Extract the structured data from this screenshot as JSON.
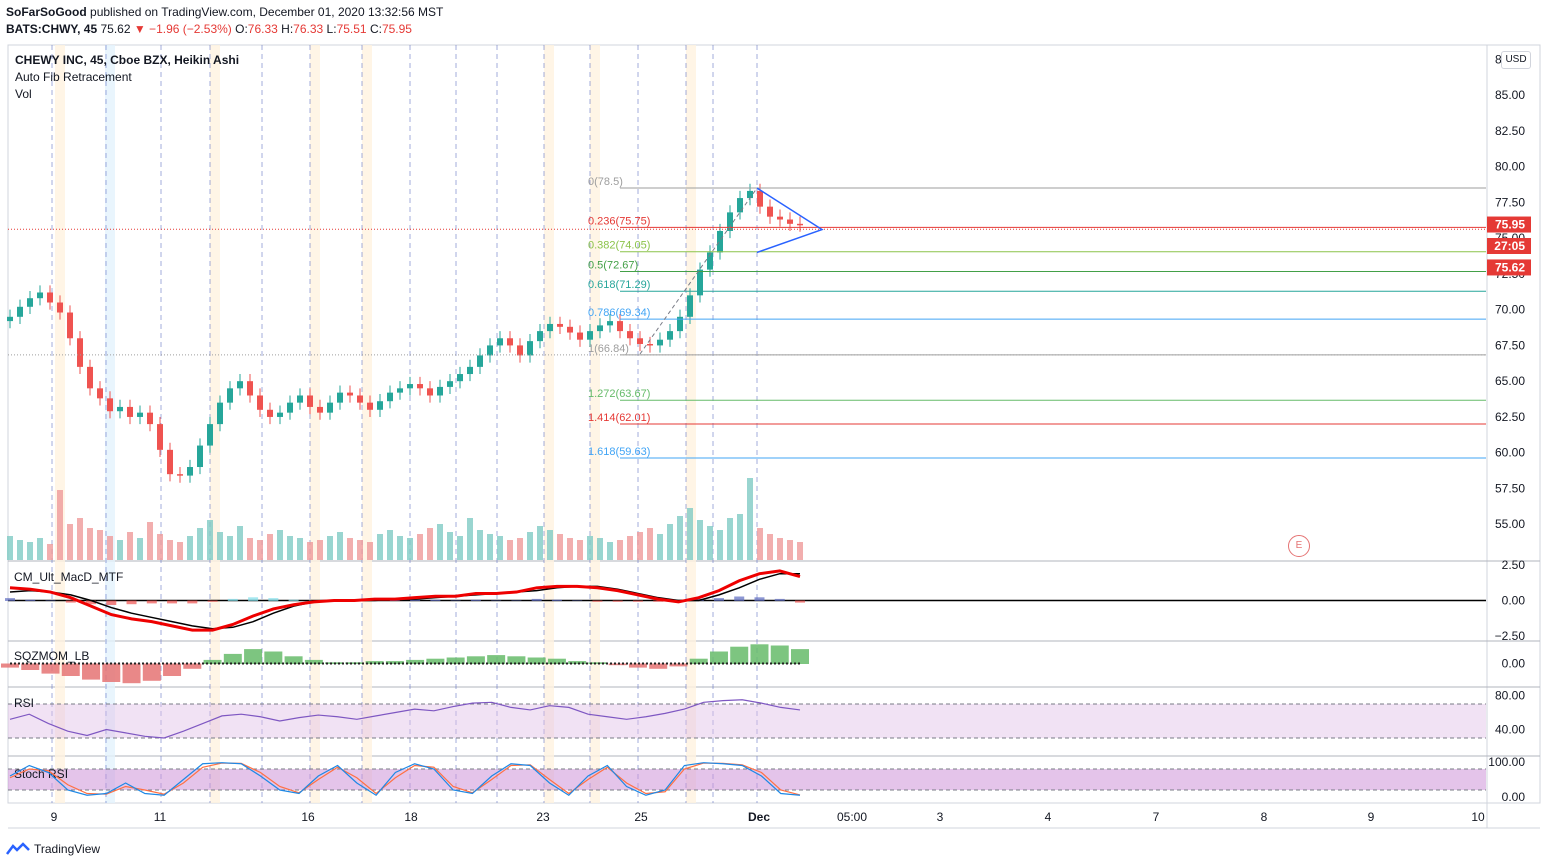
{
  "header": {
    "author": "SoFarSoGood",
    "published_text": "published on TradingView.com, December 01, 2020 13:32:56 MST",
    "symbol": "BATS:CHWY, 45",
    "last": "75.62",
    "change": "▼ −1.96 (−2.53%)",
    "o_label": "O:",
    "o": "76.33",
    "h_label": "H:",
    "h": "76.33",
    "l_label": "L:",
    "l": "75.51",
    "c_label": "C:",
    "c": "75.95"
  },
  "legend": {
    "title": "CHEWY INC, 45, Cboe BZX, Heikin Ashi",
    "fib": "Auto Fib Retracement",
    "vol": "Vol"
  },
  "currency": "USD",
  "earnings_badge": "E",
  "footer": {
    "brand": "TradingView"
  },
  "colors": {
    "up": "#26a69a",
    "down": "#ef5350",
    "grid": "#f0f3fa",
    "axis": "#131722"
  },
  "chart_data": [
    {
      "type": "candlestick",
      "style": "Heikin Ashi",
      "title": "CHEWY INC, 45, Cboe BZX, Heikin Ashi",
      "currency": "USD",
      "ylim": [
        52.5,
        88.5
      ],
      "y_ticks": [
        "55.00",
        "57.50",
        "60.00",
        "62.50",
        "65.00",
        "67.50",
        "70.00",
        "72.50",
        "75.00",
        "77.50",
        "80.00",
        "82.50",
        "85.00",
        "87.50"
      ],
      "x_ticks": [
        "9",
        "11",
        "16",
        "18",
        "23",
        "25",
        "Dec",
        "05:00",
        "3",
        "4",
        "7",
        "8",
        "9",
        "10"
      ],
      "last_price_labels": [
        "75.95",
        "27:05",
        "75.62"
      ],
      "close_path": [
        69.5,
        70.2,
        70.8,
        71.2,
        70.5,
        69.8,
        68.0,
        66.0,
        64.5,
        63.8,
        62.9,
        63.2,
        62.5,
        62.8,
        62.0,
        60.2,
        58.5,
        58.4,
        59.0,
        60.5,
        62.0,
        63.5,
        64.5,
        65.0,
        64.0,
        63.0,
        62.5,
        62.8,
        63.5,
        64.0,
        63.2,
        62.8,
        63.5,
        64.2,
        64.0,
        63.5,
        63.0,
        63.6,
        64.2,
        64.5,
        64.8,
        64.5,
        64.0,
        64.6,
        65.0,
        65.5,
        66.0,
        66.8,
        67.5,
        68.0,
        67.5,
        66.8,
        67.8,
        68.5,
        69.0,
        68.8,
        68.4,
        67.9,
        68.5,
        68.9,
        69.2,
        68.5,
        68.0,
        67.6,
        67.5,
        67.9,
        68.5,
        69.5,
        71.0,
        72.8,
        74.0,
        75.5,
        76.8,
        77.8,
        78.3,
        77.2,
        76.5,
        76.3,
        76.0,
        75.95
      ],
      "volume_path": [
        1.2,
        1.0,
        0.9,
        1.1,
        0.8,
        3.5,
        1.8,
        2.1,
        1.6,
        1.5,
        1.2,
        1.0,
        1.4,
        1.1,
        1.9,
        1.3,
        1.0,
        0.9,
        1.2,
        1.6,
        2.0,
        1.4,
        1.2,
        1.7,
        1.1,
        1.0,
        1.3,
        1.5,
        1.2,
        1.1,
        0.9,
        1.0,
        1.2,
        1.4,
        1.1,
        1.0,
        0.9,
        1.3,
        1.5,
        1.2,
        1.1,
        1.3,
        1.6,
        1.8,
        1.4,
        1.2,
        2.1,
        1.5,
        1.3,
        1.2,
        1.0,
        1.1,
        1.4,
        1.7,
        1.5,
        1.3,
        1.1,
        1.0,
        1.2,
        1.1,
        0.9,
        1.0,
        1.2,
        1.4,
        1.6,
        1.3,
        1.8,
        2.2,
        2.6,
        2.0,
        1.7,
        1.5,
        2.1,
        2.3,
        4.1,
        1.6,
        1.3,
        1.1,
        1.0,
        0.9
      ],
      "fib_levels": [
        {
          "label": "0(78.5)",
          "value": 78.5,
          "color": "#9e9e9e"
        },
        {
          "label": "0.236(75.75)",
          "value": 75.75,
          "color": "#e53935"
        },
        {
          "label": "0.382(74.05)",
          "value": 74.05,
          "color": "#8bc34a"
        },
        {
          "label": "0.5(72.67)",
          "value": 72.67,
          "color": "#43a047"
        },
        {
          "label": "0.618(71.29)",
          "value": 71.29,
          "color": "#26a69a"
        },
        {
          "label": "0.786(69.34)",
          "value": 69.34,
          "color": "#42a5f5"
        },
        {
          "label": "1(66.84)",
          "value": 66.84,
          "color": "#9e9e9e"
        },
        {
          "label": "1.272(63.67)",
          "value": 63.67,
          "color": "#66bb6a"
        },
        {
          "label": "1.414(62.01)",
          "value": 62.01,
          "color": "#e53935"
        },
        {
          "label": "1.618(59.63)",
          "value": 59.63,
          "color": "#42a5f5"
        }
      ]
    },
    {
      "type": "line",
      "title": "CM_Ult_MacD_MTF",
      "ylim": [
        -2.8,
        2.8
      ],
      "y_ticks": [
        "2.50",
        "0.00",
        "−2.50"
      ],
      "macd": [
        0.9,
        0.8,
        0.6,
        0.2,
        -0.4,
        -1.0,
        -1.3,
        -1.5,
        -1.8,
        -2.1,
        -2.1,
        -1.7,
        -1.1,
        -0.6,
        -0.3,
        -0.1,
        0.0,
        0.0,
        0.1,
        0.1,
        0.2,
        0.3,
        0.3,
        0.5,
        0.5,
        0.6,
        0.9,
        1.0,
        1.0,
        0.9,
        0.7,
        0.4,
        0.1,
        -0.1,
        0.2,
        0.7,
        1.4,
        1.9,
        2.1,
        1.7
      ],
      "signal": [
        0.6,
        0.7,
        0.6,
        0.4,
        0.0,
        -0.5,
        -0.9,
        -1.2,
        -1.5,
        -1.8,
        -2.0,
        -1.9,
        -1.5,
        -0.9,
        -0.4,
        -0.1,
        0.0,
        0.0,
        0.0,
        0.1,
        0.1,
        0.2,
        0.3,
        0.4,
        0.5,
        0.6,
        0.7,
        0.9,
        1.0,
        1.0,
        0.8,
        0.5,
        0.2,
        0.0,
        0.0,
        0.4,
        0.9,
        1.5,
        1.9,
        1.9
      ]
    },
    {
      "type": "bar",
      "title": "SQZMOM_LB",
      "y_ticks": [
        "0.00"
      ],
      "values": [
        -0.3,
        -0.5,
        -0.8,
        -1.0,
        -1.3,
        -1.5,
        -1.6,
        -1.4,
        -1.0,
        -0.4,
        0.3,
        0.8,
        1.2,
        1.0,
        0.6,
        0.3,
        0.1,
        0.1,
        0.2,
        0.2,
        0.3,
        0.4,
        0.5,
        0.6,
        0.7,
        0.6,
        0.5,
        0.4,
        0.2,
        0.1,
        -0.1,
        -0.3,
        -0.4,
        -0.2,
        0.4,
        1.0,
        1.4,
        1.6,
        1.5,
        1.2
      ]
    },
    {
      "type": "line",
      "title": "RSI",
      "ylim": [
        10,
        90
      ],
      "y_ticks": [
        "80.00",
        "40.00"
      ],
      "bands": [
        30,
        70
      ],
      "values": [
        52,
        58,
        47,
        38,
        33,
        40,
        36,
        32,
        30,
        38,
        47,
        56,
        58,
        55,
        50,
        54,
        57,
        55,
        52,
        56,
        60,
        64,
        62,
        67,
        71,
        72,
        66,
        63,
        68,
        66,
        58,
        55,
        52,
        55,
        59,
        64,
        72,
        74,
        75,
        71,
        66,
        63
      ]
    },
    {
      "type": "line",
      "title": "Stoch RSI",
      "ylim": [
        0,
        100
      ],
      "y_ticks": [
        "100.00",
        "0.00"
      ],
      "bands": [
        20,
        80
      ],
      "k": [
        60,
        90,
        70,
        20,
        5,
        10,
        40,
        10,
        5,
        50,
        95,
        98,
        95,
        60,
        20,
        10,
        60,
        90,
        40,
        5,
        70,
        95,
        80,
        20,
        10,
        60,
        95,
        90,
        40,
        5,
        60,
        90,
        30,
        5,
        20,
        90,
        98,
        95,
        90,
        60,
        10,
        5
      ],
      "d": [
        55,
        80,
        75,
        35,
        10,
        8,
        30,
        20,
        8,
        40,
        85,
        97,
        96,
        70,
        30,
        12,
        50,
        85,
        55,
        10,
        55,
        90,
        85,
        30,
        12,
        50,
        90,
        92,
        50,
        10,
        50,
        85,
        40,
        10,
        15,
        80,
        97,
        96,
        92,
        70,
        20,
        6
      ]
    }
  ]
}
